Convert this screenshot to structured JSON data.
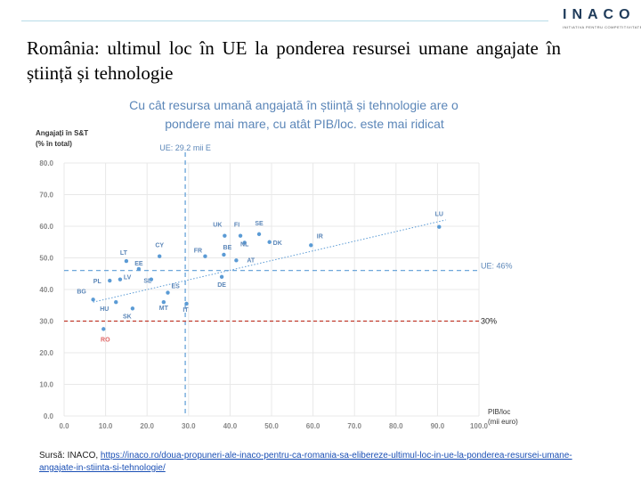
{
  "slide": {
    "title": "România: ultimul loc în UE la ponderea resursei umane angajate în știință și tehnologie"
  },
  "logo": {
    "word": "INACO",
    "tagline": "INITIATIVA PENTRU COMPETITIVITATE"
  },
  "source": {
    "prefix": "Sursă: INACO,",
    "link": "https://inaco.ro/doua-propuneri-ale-inaco-pentru-ca-romania-sa-elibereze-ultimul-loc-in-ue-la-ponderea-resursei-umane-angajate-in-stiinta-si-tehnologie/"
  },
  "colors": {
    "dot": "#5b9bd5",
    "text_blue": "#5b86b8",
    "ro": "#e06666",
    "line_30": "#c0392b",
    "grid": "#e8e8e8",
    "axis_text": "#888888"
  },
  "chart_data": {
    "type": "scatter",
    "title": "Cu cât resursa umană angajată în știință și tehnologie are o pondere mai mare, cu atât PIB/loc. este mai ridicat",
    "ylabel_lines": [
      "Angajați în S&T",
      "(% în total)"
    ],
    "xlabel_lines": [
      "PIB/loc",
      "(mii euro)"
    ],
    "xlim": [
      0,
      100
    ],
    "ylim": [
      0,
      80
    ],
    "x_ticks": [
      "0.0",
      "10.0",
      "20.0",
      "30.0",
      "40.0",
      "50.0",
      "60.0",
      "70.0",
      "80.0",
      "90.0",
      "100.0"
    ],
    "y_ticks": [
      "0.0",
      "10.0",
      "20.0",
      "30.0",
      "40.0",
      "50.0",
      "60.0",
      "70.0",
      "80.0"
    ],
    "grid": true,
    "points": [
      {
        "label": "LU",
        "x": 90.4,
        "y": 59.8
      },
      {
        "label": "IR",
        "x": 59.5,
        "y": 54.0
      },
      {
        "label": "SE",
        "x": 47.0,
        "y": 57.5
      },
      {
        "label": "DK",
        "x": 49.5,
        "y": 55.0
      },
      {
        "label": "FI",
        "x": 42.5,
        "y": 57.0
      },
      {
        "label": "UK",
        "x": 38.7,
        "y": 57.0
      },
      {
        "label": "NL",
        "x": 43.5,
        "y": 54.8
      },
      {
        "label": "FR",
        "x": 34.0,
        "y": 50.5
      },
      {
        "label": "BE",
        "x": 38.5,
        "y": 51.0
      },
      {
        "label": "AT",
        "x": 41.5,
        "y": 49.2
      },
      {
        "label": "DE",
        "x": 38.0,
        "y": 44.0
      },
      {
        "label": "CY",
        "x": 23.0,
        "y": 50.5
      },
      {
        "label": "LT",
        "x": 15.0,
        "y": 49.0
      },
      {
        "label": "EE",
        "x": 18.0,
        "y": 46.5
      },
      {
        "label": "PL",
        "x": 11.0,
        "y": 42.8
      },
      {
        "label": "LV",
        "x": 13.5,
        "y": 43.2
      },
      {
        "label": "SL",
        "x": 21.0,
        "y": 43.2
      },
      {
        "label": "BG",
        "x": 7.0,
        "y": 36.8
      },
      {
        "label": "HU",
        "x": 12.5,
        "y": 36.0
      },
      {
        "label": "ES",
        "x": 25.0,
        "y": 39.0
      },
      {
        "label": "MT",
        "x": 24.0,
        "y": 36.0
      },
      {
        "label": "IT",
        "x": 29.5,
        "y": 35.5
      },
      {
        "label": "SK",
        "x": 16.5,
        "y": 34.0
      },
      {
        "label": "RO",
        "x": 9.5,
        "y": 27.5
      }
    ],
    "ref_lines": {
      "eu_x": {
        "value": 29.2,
        "label": "UE: 29.2 mii E"
      },
      "eu_y": {
        "value": 46,
        "label": "UE: 46%"
      },
      "line_30": {
        "value": 30,
        "label": "30%"
      }
    },
    "trendline": {
      "x0": 7,
      "y0": 36,
      "x1": 92,
      "y1": 62
    }
  }
}
